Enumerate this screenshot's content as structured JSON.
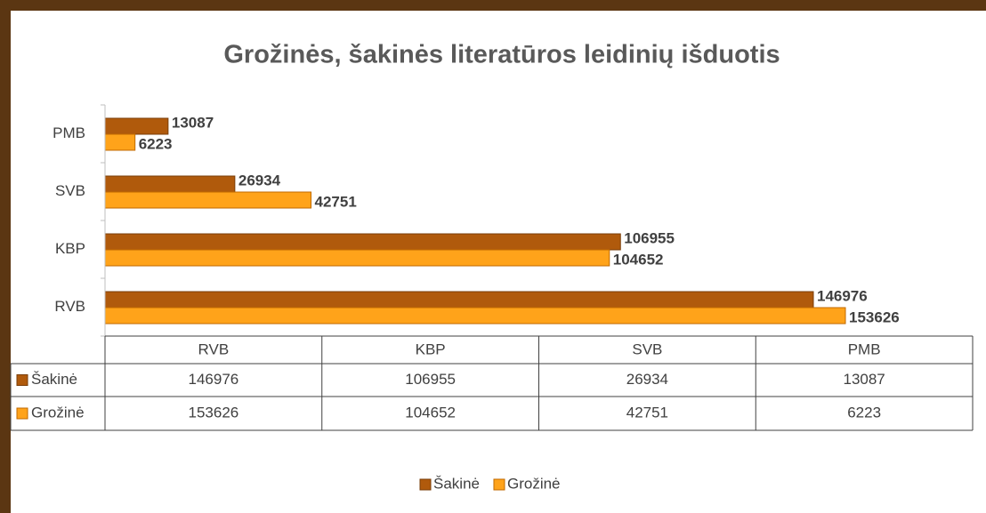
{
  "chart_data": {
    "type": "bar",
    "orientation": "horizontal",
    "title": "Grožinės, šakinės literatūros leidinių išduotis",
    "categories": [
      "RVB",
      "KBP",
      "SVB",
      "PMB"
    ],
    "series": [
      {
        "name": "Šakinė",
        "color": "#b05a0c",
        "values": [
          146976,
          106955,
          26934,
          13087
        ]
      },
      {
        "name": "Grožinė",
        "color": "#ffa31a",
        "values": [
          153626,
          104652,
          42751,
          6223
        ]
      }
    ],
    "legend": "bottom",
    "data_table": true
  }
}
